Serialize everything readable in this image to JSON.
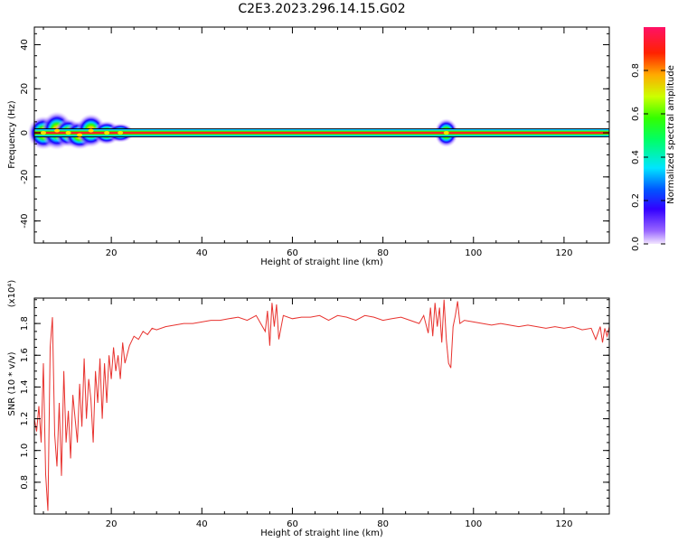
{
  "title": "C2E3.2023.296.14.15.G02",
  "colors": {
    "snr_line": "#e8322e",
    "axis": "#000000",
    "background": "#ffffff"
  },
  "colorbar": {
    "label": "Normalized spectral amplitude",
    "ticks": [
      "0.0",
      "0.2",
      "0.4",
      "0.6",
      "0.8"
    ],
    "tick_values": [
      0.0,
      0.2,
      0.4,
      0.6,
      0.8
    ],
    "range": [
      0,
      1
    ]
  },
  "chart_data": [
    {
      "type": "heatmap",
      "xlabel": "Height of straight line (km)",
      "ylabel": "Frequency (Hz)",
      "xlim": [
        3,
        130
      ],
      "ylim": [
        -50,
        48
      ],
      "x_ticks": [
        20,
        40,
        60,
        80,
        100,
        120
      ],
      "y_ticks": [
        -40,
        -20,
        0,
        20,
        40
      ],
      "x_tick_labels": [
        "20",
        "40",
        "60",
        "80",
        "100",
        "120"
      ],
      "y_tick_labels": [
        "-40",
        "-20",
        "0",
        "20",
        "40"
      ],
      "ridge": {
        "frequency": 0,
        "x_start": 3,
        "x_end": 130,
        "amplitude": 1.0
      },
      "blobs": [
        {
          "x": 5,
          "f": 0,
          "spread_x": 1.6,
          "spread_f": 3.5
        },
        {
          "x": 8,
          "f": 1,
          "spread_x": 1.6,
          "spread_f": 4
        },
        {
          "x": 10.5,
          "f": 0,
          "spread_x": 1.4,
          "spread_f": 3
        },
        {
          "x": 13,
          "f": -1,
          "spread_x": 1.6,
          "spread_f": 3
        },
        {
          "x": 15.5,
          "f": 1,
          "spread_x": 1.5,
          "spread_f": 3.5
        },
        {
          "x": 19,
          "f": 0,
          "spread_x": 1.4,
          "spread_f": 2.5
        },
        {
          "x": 22,
          "f": 0,
          "spread_x": 1.4,
          "spread_f": 2
        },
        {
          "x": 94,
          "f": 0,
          "spread_x": 1.2,
          "spread_f": 3
        }
      ]
    },
    {
      "type": "line",
      "xlabel": "Height of straight line (km)",
      "ylabel": "SNR (10 * v/v)",
      "y_multiplier": "(x10⁴)",
      "xlim": [
        3,
        130
      ],
      "ylim": [
        0.6,
        1.96
      ],
      "x_ticks": [
        20,
        40,
        60,
        80,
        100,
        120
      ],
      "y_ticks": [
        0.8,
        1.0,
        1.2,
        1.4,
        1.6,
        1.8
      ],
      "x_tick_labels": [
        "20",
        "40",
        "60",
        "80",
        "100",
        "120"
      ],
      "y_tick_labels": [
        "0.8",
        "1.0",
        "1.2",
        "1.4",
        "1.6",
        "1.8"
      ],
      "series": [
        {
          "x": [
            3,
            3.5,
            4,
            4.5,
            5,
            5.5,
            6,
            6.5,
            7,
            7.5,
            8,
            8.5,
            9,
            9.5,
            10,
            10.5,
            11,
            11.5,
            12,
            12.5,
            13,
            13.5,
            14,
            14.5,
            15,
            15.5,
            16,
            16.5,
            17,
            17.5,
            18,
            18.5,
            19,
            19.5,
            20,
            20.5,
            21,
            21.5,
            22,
            22.5,
            23,
            24,
            25,
            26,
            27,
            28,
            29,
            30,
            32,
            34,
            36,
            38,
            40,
            42,
            44,
            46,
            48,
            50,
            52,
            53,
            54,
            54.5,
            55,
            55.5,
            56,
            56.5,
            57,
            58,
            60,
            62,
            64,
            66,
            68,
            70,
            72,
            74,
            76,
            78,
            80,
            82,
            84,
            86,
            88,
            89,
            90,
            90.5,
            91,
            91.5,
            92,
            92.5,
            93,
            93.5,
            94,
            94.5,
            95,
            95.5,
            96,
            96.5,
            97,
            98,
            100,
            102,
            104,
            106,
            108,
            110,
            112,
            114,
            116,
            118,
            120,
            122,
            124,
            126,
            127,
            128,
            128.5,
            129,
            129.5,
            130
          ],
          "values": [
            1.2,
            1.12,
            1.28,
            1.05,
            1.55,
            0.85,
            0.62,
            1.65,
            1.84,
            1.1,
            0.9,
            1.3,
            0.84,
            1.5,
            1.05,
            1.25,
            0.95,
            1.35,
            1.2,
            1.05,
            1.42,
            1.15,
            1.58,
            1.2,
            1.45,
            1.32,
            1.05,
            1.5,
            1.3,
            1.58,
            1.2,
            1.55,
            1.3,
            1.6,
            1.45,
            1.65,
            1.5,
            1.6,
            1.45,
            1.68,
            1.55,
            1.66,
            1.72,
            1.7,
            1.75,
            1.73,
            1.77,
            1.76,
            1.78,
            1.79,
            1.8,
            1.8,
            1.81,
            1.82,
            1.82,
            1.83,
            1.84,
            1.82,
            1.85,
            1.8,
            1.75,
            1.88,
            1.66,
            1.93,
            1.78,
            1.92,
            1.7,
            1.85,
            1.83,
            1.84,
            1.84,
            1.85,
            1.82,
            1.85,
            1.84,
            1.82,
            1.85,
            1.84,
            1.82,
            1.83,
            1.84,
            1.82,
            1.8,
            1.85,
            1.74,
            1.9,
            1.72,
            1.93,
            1.78,
            1.9,
            1.68,
            1.95,
            1.7,
            1.55,
            1.52,
            1.78,
            1.85,
            1.94,
            1.8,
            1.82,
            1.81,
            1.8,
            1.79,
            1.8,
            1.79,
            1.78,
            1.79,
            1.78,
            1.77,
            1.78,
            1.77,
            1.78,
            1.76,
            1.77,
            1.7,
            1.78,
            1.68,
            1.77,
            1.72,
            1.78
          ]
        }
      ]
    }
  ]
}
